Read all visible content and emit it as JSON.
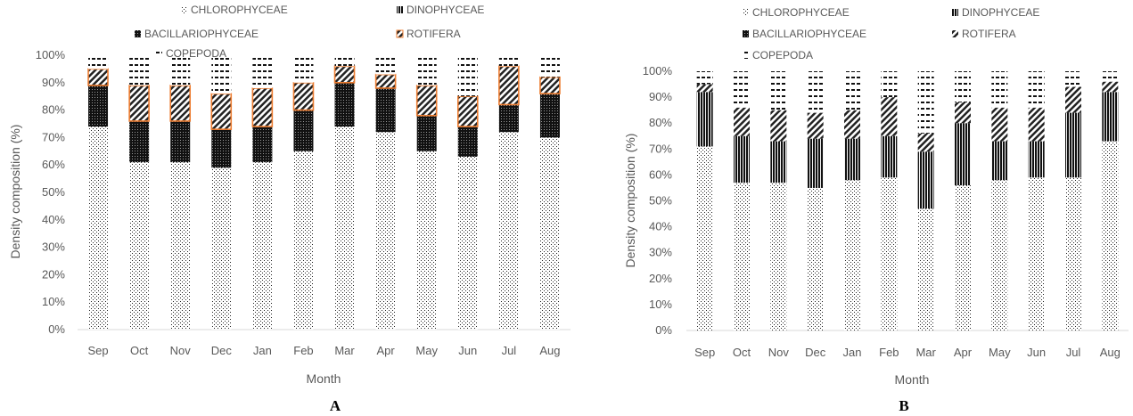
{
  "panels": [
    {
      "label": "A"
    },
    {
      "label": "B"
    }
  ],
  "chart_data": [
    {
      "type": "bar",
      "stacked": true,
      "panel": "A",
      "xlabel": "Month",
      "ylabel": "Density composition (%)",
      "ylim": [
        0,
        100
      ],
      "yticks": [
        "0%",
        "10%",
        "20%",
        "30%",
        "40%",
        "50%",
        "60%",
        "70%",
        "80%",
        "90%",
        "100%"
      ],
      "categories": [
        "Sep",
        "Oct",
        "Nov",
        "Dec",
        "Jan",
        "Feb",
        "Mar",
        "Apr",
        "May",
        "Jun",
        "Jul",
        "Aug"
      ],
      "legend_position": "top",
      "series": [
        {
          "name": "CHLOROPHYCEAE",
          "values": [
            74,
            61,
            61,
            59,
            61,
            65,
            74,
            72,
            65,
            63,
            72,
            70
          ]
        },
        {
          "name": "BACILLARIOPHYCEAE",
          "values": [
            15,
            15,
            15,
            14,
            13,
            15,
            16,
            16,
            13,
            11,
            10,
            16
          ]
        },
        {
          "name": "DINOPHYCEAE",
          "values": [
            0,
            0,
            0,
            0,
            0,
            0,
            0,
            0,
            0,
            0,
            0,
            0
          ]
        },
        {
          "name": "ROTIFERA",
          "values": [
            6,
            13,
            13,
            13,
            14,
            10,
            6,
            5,
            11,
            11,
            14,
            6
          ]
        },
        {
          "name": "COPEPODA",
          "values": [
            5,
            11,
            11,
            14,
            12,
            10,
            4,
            7,
            11,
            15,
            4,
            8
          ]
        }
      ],
      "colors": {
        "outline_rotifera": "#ED7D31",
        "dark": "#111111"
      }
    },
    {
      "type": "bar",
      "stacked": true,
      "panel": "B",
      "xlabel": "Month",
      "ylabel": "Density composition (%)",
      "ylim": [
        0,
        100
      ],
      "yticks": [
        "0%",
        "10%",
        "20%",
        "30%",
        "40%",
        "50%",
        "60%",
        "70%",
        "80%",
        "90%",
        "100%"
      ],
      "categories": [
        "Sep",
        "Oct",
        "Nov",
        "Dec",
        "Jan",
        "Feb",
        "Mar",
        "Apr",
        "May",
        "Jun",
        "Jul",
        "Aug"
      ],
      "legend_position": "top",
      "series": [
        {
          "name": "CHLOROPHYCEAE",
          "values": [
            71,
            57,
            57,
            55,
            58,
            59,
            47,
            56,
            58,
            59,
            59,
            73
          ]
        },
        {
          "name": "BACILLARIOPHYCEAE",
          "values": [
            0,
            0,
            0,
            0,
            0,
            0,
            0,
            0,
            0,
            0,
            0,
            0
          ]
        },
        {
          "name": "DINOPHYCEAE",
          "values": [
            21,
            18,
            16,
            19,
            16,
            16,
            22,
            24,
            15,
            14,
            25,
            19
          ]
        },
        {
          "name": "ROTIFERA",
          "values": [
            3,
            11,
            12,
            10,
            11,
            15,
            7,
            8,
            13,
            13,
            10,
            4
          ]
        },
        {
          "name": "COPEPODA",
          "values": [
            5,
            14,
            15,
            16,
            15,
            10,
            24,
            12,
            14,
            14,
            6,
            4
          ]
        }
      ]
    }
  ]
}
